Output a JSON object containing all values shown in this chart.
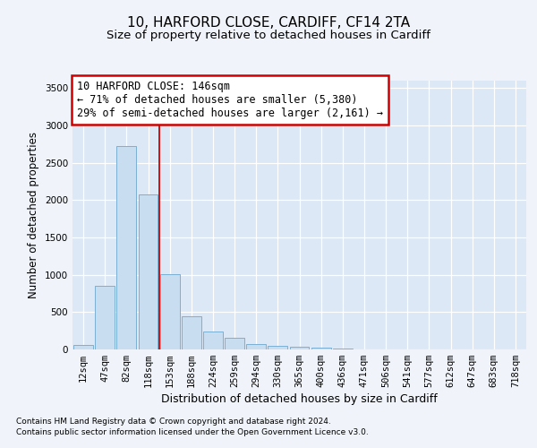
{
  "title1": "10, HARFORD CLOSE, CARDIFF, CF14 2TA",
  "title2": "Size of property relative to detached houses in Cardiff",
  "xlabel": "Distribution of detached houses by size in Cardiff",
  "ylabel": "Number of detached properties",
  "footnote1": "Contains HM Land Registry data © Crown copyright and database right 2024.",
  "footnote2": "Contains public sector information licensed under the Open Government Licence v3.0.",
  "annotation_line1": "10 HARFORD CLOSE: 146sqm",
  "annotation_line2": "← 71% of detached houses are smaller (5,380)",
  "annotation_line3": "29% of semi-detached houses are larger (2,161) →",
  "bar_labels": [
    "12sqm",
    "47sqm",
    "82sqm",
    "118sqm",
    "153sqm",
    "188sqm",
    "224sqm",
    "259sqm",
    "294sqm",
    "330sqm",
    "365sqm",
    "400sqm",
    "436sqm",
    "471sqm",
    "506sqm",
    "541sqm",
    "577sqm",
    "612sqm",
    "647sqm",
    "683sqm",
    "718sqm"
  ],
  "bar_values": [
    65,
    850,
    2720,
    2080,
    1010,
    450,
    240,
    155,
    70,
    45,
    35,
    20,
    10,
    4,
    2,
    1,
    0,
    0,
    0,
    0,
    0
  ],
  "bar_color": "#c8ddf0",
  "bar_edgecolor": "#7ab0d4",
  "redline_x": 3.5,
  "ylim": [
    0,
    3600
  ],
  "yticks": [
    0,
    500,
    1000,
    1500,
    2000,
    2500,
    3000,
    3500
  ],
  "fig_bg_color": "#f0f4fa",
  "plot_bg_color": "#dce8f5",
  "grid_color": "#ffffff",
  "annotation_box_facecolor": "#ffffff",
  "annotation_box_edgecolor": "#cc0000",
  "title1_fontsize": 11,
  "title2_fontsize": 9.5,
  "annotation_fontsize": 8.5,
  "ylabel_fontsize": 8.5,
  "xlabel_fontsize": 9,
  "tick_fontsize": 7.5,
  "footnote_fontsize": 6.5
}
